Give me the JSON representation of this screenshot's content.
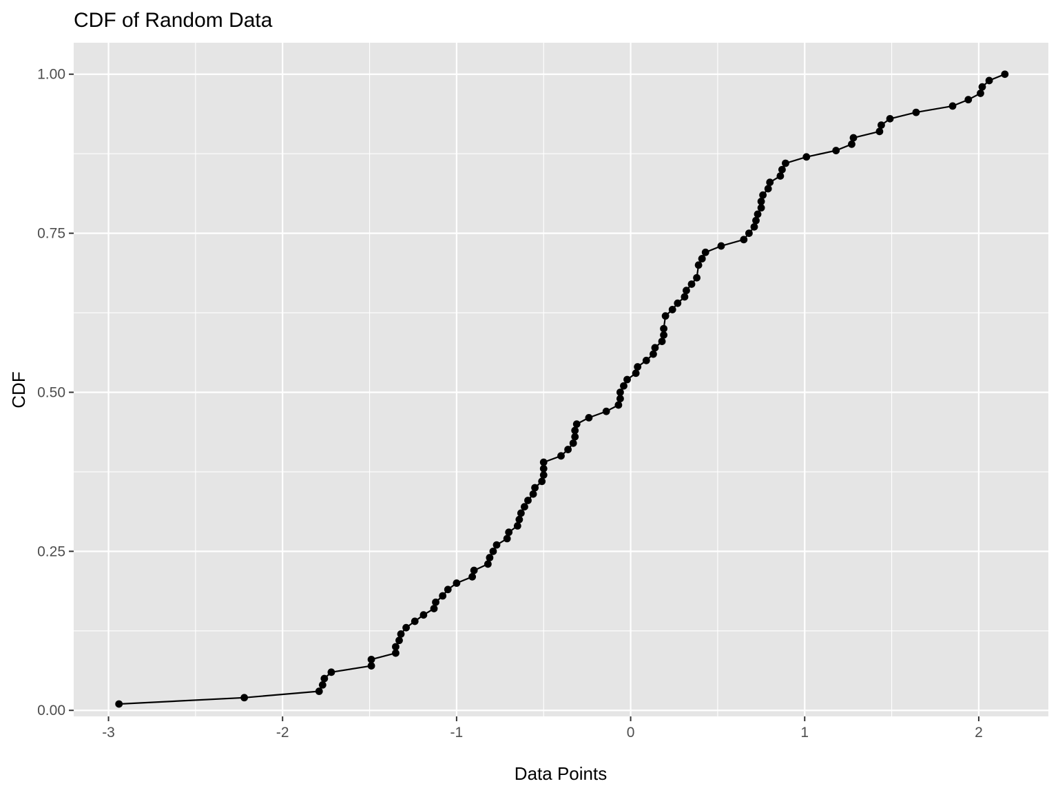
{
  "chart_data": {
    "type": "line",
    "title": "CDF of Random Data",
    "xlabel": "Data Points",
    "ylabel": "CDF",
    "xlim": [
      -3.2,
      2.4
    ],
    "ylim": [
      -0.0095,
      1.0495
    ],
    "x_ticks": [
      -3,
      -2,
      -1,
      0,
      1,
      2
    ],
    "x_tick_labels": [
      "-3",
      "-2",
      "-1",
      "0",
      "1",
      "2"
    ],
    "y_ticks": [
      0,
      0.25,
      0.5,
      0.75,
      1
    ],
    "y_tick_labels": [
      "0.00",
      "0.25",
      "0.50",
      "0.75",
      "1.00"
    ],
    "grid": true,
    "markers": true,
    "legend": "none",
    "colors": {
      "panel": "#e5e5e5",
      "grid": "#ffffff",
      "line": "#000000",
      "axis_text": "#4d4d4d",
      "title": "#000000"
    },
    "series": [
      {
        "x": [
          -2.94,
          -2.22,
          -1.79,
          -1.77,
          -1.76,
          -1.72,
          -1.49,
          -1.49,
          -1.35,
          -1.35,
          -1.33,
          -1.32,
          -1.29,
          -1.24,
          -1.19,
          -1.13,
          -1.12,
          -1.08,
          -1.05,
          -1.0,
          -0.91,
          -0.9,
          -0.82,
          -0.81,
          -0.79,
          -0.77,
          -0.71,
          -0.7,
          -0.65,
          -0.64,
          -0.63,
          -0.61,
          -0.59,
          -0.56,
          -0.55,
          -0.51,
          -0.5,
          -0.5,
          -0.5,
          -0.4,
          -0.36,
          -0.33,
          -0.32,
          -0.32,
          -0.31,
          -0.24,
          -0.14,
          -0.07,
          -0.06,
          -0.06,
          -0.04,
          -0.02,
          0.03,
          0.04,
          0.09,
          0.13,
          0.14,
          0.18,
          0.19,
          0.19,
          0.2,
          0.24,
          0.27,
          0.31,
          0.32,
          0.35,
          0.38,
          0.39,
          0.41,
          0.41,
          0.43,
          0.52,
          0.65,
          0.68,
          0.71,
          0.72,
          0.73,
          0.75,
          0.75,
          0.76,
          0.79,
          0.8,
          0.86,
          0.87,
          0.89,
          1.01,
          1.18,
          1.27,
          1.28,
          1.43,
          1.44,
          1.49,
          1.64,
          1.85,
          1.94,
          2.01,
          2.02,
          2.06,
          2.15
        ],
        "y": [
          0.01,
          0.02,
          0.03,
          0.04,
          0.05,
          0.06,
          0.07,
          0.08,
          0.09,
          0.1,
          0.11,
          0.12,
          0.13,
          0.14,
          0.15,
          0.16,
          0.17,
          0.18,
          0.19,
          0.2,
          0.21,
          0.22,
          0.23,
          0.24,
          0.25,
          0.26,
          0.27,
          0.28,
          0.29,
          0.3,
          0.31,
          0.32,
          0.33,
          0.34,
          0.35,
          0.36,
          0.37,
          0.38,
          0.39,
          0.4,
          0.41,
          0.42,
          0.43,
          0.44,
          0.45,
          0.46,
          0.47,
          0.48,
          0.49,
          0.5,
          0.51,
          0.52,
          0.53,
          0.54,
          0.55,
          0.56,
          0.57,
          0.58,
          0.59,
          0.6,
          0.62,
          0.63,
          0.64,
          0.65,
          0.66,
          0.67,
          0.68,
          0.7,
          0.71,
          0.71,
          0.72,
          0.73,
          0.74,
          0.75,
          0.76,
          0.77,
          0.78,
          0.79,
          0.8,
          0.81,
          0.82,
          0.83,
          0.84,
          0.85,
          0.86,
          0.87,
          0.88,
          0.89,
          0.9,
          0.91,
          0.92,
          0.93,
          0.94,
          0.95,
          0.96,
          0.97,
          0.98,
          0.99,
          1.0
        ]
      }
    ]
  }
}
